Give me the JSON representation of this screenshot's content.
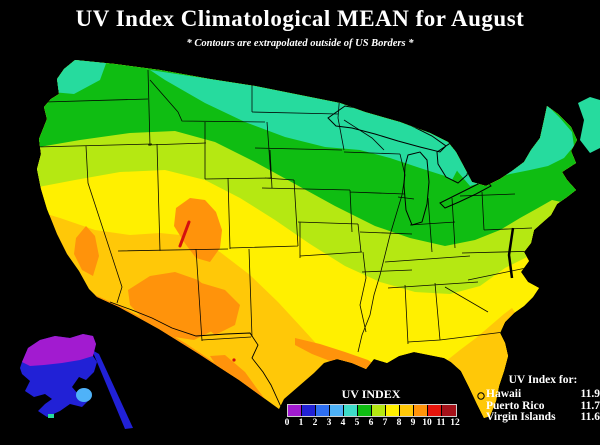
{
  "header": {
    "title": "UV Index Climatological MEAN for August",
    "subtitle": "* Contours are extrapolated outside of US Borders *"
  },
  "legend": {
    "title": "UV INDEX",
    "tick_labels": [
      "0",
      "1",
      "2",
      "3",
      "4",
      "5",
      "6",
      "7",
      "8",
      "9",
      "10",
      "11",
      "12"
    ],
    "colors": [
      "#A21BD0",
      "#2121D6",
      "#2E6FF2",
      "#4FB2F8",
      "#3EDCC9",
      "#0FBD12",
      "#B5E812",
      "#FFF000",
      "#FFC808",
      "#FF930B",
      "#E8150C",
      "#A5121A"
    ]
  },
  "islands": {
    "title": "UV Index for:",
    "rows": [
      {
        "name": "Hawaii",
        "value": "11.9"
      },
      {
        "name": "Puerto Rico",
        "value": "11.7"
      },
      {
        "name": "Virgin Islands",
        "value": "11.6"
      }
    ]
  },
  "palette": {
    "background": "#000000",
    "purple": "#A21BD0",
    "blue": "#2121D6",
    "mediumblue": "#2E6FF2",
    "skyblue": "#4FB2F8",
    "teal": "#26DB9E",
    "green": "#0FBD12",
    "yellowgreen": "#B5E812",
    "yellow": "#FFF000",
    "amber": "#FFC808",
    "orange": "#FF930B",
    "red": "#D50F0F",
    "border_line": "#000000",
    "text": "#FFFFFF"
  },
  "chart_data": {
    "type": "heatmap",
    "title": "UV Index Climatological MEAN for August",
    "note": "* Contours are extrapolated outside of US Borders *",
    "colorbar": {
      "label": "UV INDEX",
      "range": [
        0,
        12
      ],
      "tick_labels": [
        0,
        1,
        2,
        3,
        4,
        5,
        6,
        7,
        8,
        9,
        10,
        11,
        12
      ],
      "colors": [
        "#A21BD0",
        "#2121D6",
        "#2E6FF2",
        "#4FB2F8",
        "#3EDCC9",
        "#0FBD12",
        "#B5E812",
        "#FFF000",
        "#FFC808",
        "#FF930B",
        "#E8150C",
        "#A5121A"
      ],
      "position": "bottom-center"
    },
    "regions": [
      {
        "region": "Northwest Washington coast",
        "uv_band": "4-5"
      },
      {
        "region": "Northern border: ND / MN / WI north / upper MI / Lake Superior",
        "uv_band": "4-5"
      },
      {
        "region": "Adirondacks / northern New England / Maine",
        "uv_band": "4-5"
      },
      {
        "region": "WA-OR / MT / WI / lower MI / NY / PA / southern New England",
        "uv_band": "5-6"
      },
      {
        "region": "Central band: S Oregon / Idaho / Nebraska / Iowa / Ohio / Virginia",
        "uv_band": "6-7"
      },
      {
        "region": "Mid-south: Kansas / Missouri / Tennessee / Carolinas / Gulf states coastlands",
        "uv_band": "7-8"
      },
      {
        "region": "California / Nevada / Texas / Oklahoma / Florida peninsula",
        "uv_band": "8-9"
      },
      {
        "region": "Desert Southwest: Arizona / New Mexico / Utah / Rio Grande border strip / Louisiana coast",
        "uv_band": "9-10"
      },
      {
        "region": "Colorado-Utah Rockies peak streak",
        "uv_band": "10-11"
      },
      {
        "region": "Alaska north",
        "uv_band": "0-1"
      },
      {
        "region": "Alaska central and southeast panhandle",
        "uv_band": "1-2"
      },
      {
        "region": "Alaska south-central patch",
        "uv_band": "3-4"
      }
    ],
    "islands": [
      {
        "name": "Hawaii",
        "uv": 11.9
      },
      {
        "name": "Puerto Rico",
        "uv": 11.7
      },
      {
        "name": "Virgin Islands",
        "uv": 11.6
      }
    ]
  }
}
